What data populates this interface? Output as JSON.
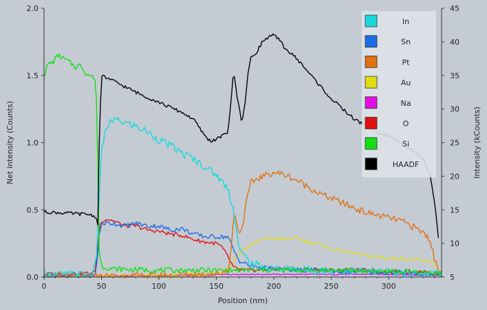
{
  "chart_data": {
    "type": "line",
    "title": "",
    "xlabel": "Position (nm)",
    "ylabel": "Net intensity (Counts)",
    "y2label": "Intensity (kCounts)",
    "xlim": [
      0,
      346
    ],
    "ylim": [
      0,
      2.0
    ],
    "y2lim": [
      5,
      45
    ],
    "xticks": [
      0,
      50,
      100,
      150,
      200,
      250,
      300
    ],
    "yticks": [
      "0.0",
      "0.5",
      "1.0",
      "1.5",
      "2.0"
    ],
    "y2ticks": [
      "5",
      "10",
      "15",
      "20",
      "25",
      "30",
      "35",
      "40",
      "45"
    ],
    "legend_position": "top-right",
    "background": "#c4cbd3",
    "plot_background": "#c4cbd3",
    "series": [
      {
        "name": "In",
        "color": "#19d8dc",
        "axis": "left",
        "x": [
          0,
          40,
          44,
          46,
          48,
          50,
          55,
          60,
          70,
          80,
          90,
          100,
          110,
          120,
          130,
          140,
          150,
          160,
          165,
          170,
          180,
          190,
          200,
          220,
          240,
          260,
          280,
          300,
          320,
          340,
          346
        ],
        "y": [
          0.02,
          0.02,
          0.05,
          0.2,
          0.6,
          0.95,
          1.12,
          1.17,
          1.15,
          1.12,
          1.08,
          1.02,
          0.98,
          0.92,
          0.88,
          0.82,
          0.76,
          0.66,
          0.5,
          0.2,
          0.1,
          0.08,
          0.06,
          0.06,
          0.05,
          0.05,
          0.04,
          0.04,
          0.03,
          0.03,
          0.02
        ]
      },
      {
        "name": "Sn",
        "color": "#1a6ce0",
        "axis": "left",
        "x": [
          0,
          44,
          46,
          48,
          50,
          60,
          70,
          80,
          90,
          100,
          110,
          120,
          130,
          140,
          150,
          160,
          165,
          170,
          175,
          180,
          200,
          220,
          240,
          260,
          280,
          300,
          320,
          340,
          346
        ],
        "y": [
          0.01,
          0.01,
          0.1,
          0.3,
          0.4,
          0.4,
          0.38,
          0.4,
          0.38,
          0.38,
          0.35,
          0.36,
          0.32,
          0.3,
          0.3,
          0.3,
          0.2,
          0.12,
          0.1,
          0.08,
          0.06,
          0.05,
          0.05,
          0.04,
          0.04,
          0.03,
          0.03,
          0.02,
          0.02
        ]
      },
      {
        "name": "Pt",
        "color": "#e07010",
        "axis": "left",
        "x": [
          0,
          100,
          150,
          160,
          163,
          165,
          168,
          170,
          172,
          176,
          180,
          185,
          200,
          210,
          220,
          240,
          260,
          280,
          300,
          310,
          320,
          330,
          336,
          340,
          346
        ],
        "y": [
          0.0,
          0.01,
          0.02,
          0.05,
          0.2,
          0.48,
          0.4,
          0.33,
          0.35,
          0.55,
          0.7,
          0.73,
          0.78,
          0.76,
          0.72,
          0.62,
          0.55,
          0.48,
          0.44,
          0.42,
          0.38,
          0.33,
          0.28,
          0.12,
          0.02
        ]
      },
      {
        "name": "Au",
        "color": "#e0dc10",
        "axis": "left",
        "x": [
          0,
          100,
          150,
          160,
          165,
          170,
          180,
          190,
          200,
          210,
          220,
          230,
          240,
          250,
          260,
          270,
          280,
          290,
          300,
          310,
          320,
          330,
          340,
          346
        ],
        "y": [
          0.01,
          0.01,
          0.03,
          0.06,
          0.12,
          0.18,
          0.24,
          0.28,
          0.29,
          0.28,
          0.29,
          0.26,
          0.24,
          0.21,
          0.19,
          0.18,
          0.16,
          0.15,
          0.14,
          0.14,
          0.13,
          0.12,
          0.1,
          0.03
        ]
      },
      {
        "name": "Na",
        "color": "#e010e0",
        "axis": "left",
        "x": [
          0,
          50,
          100,
          150,
          200,
          250,
          300,
          346
        ],
        "y": [
          0.0,
          0.01,
          0.01,
          0.02,
          0.02,
          0.02,
          0.02,
          0.01
        ]
      },
      {
        "name": "O",
        "color": "#e01010",
        "axis": "left",
        "x": [
          0,
          44,
          46,
          48,
          50,
          55,
          60,
          70,
          80,
          90,
          100,
          110,
          120,
          130,
          140,
          150,
          155,
          160,
          165,
          170,
          180,
          200,
          220,
          240,
          260,
          280,
          300,
          320,
          340,
          346
        ],
        "y": [
          0.02,
          0.03,
          0.15,
          0.35,
          0.42,
          0.43,
          0.42,
          0.38,
          0.38,
          0.35,
          0.34,
          0.32,
          0.31,
          0.28,
          0.26,
          0.25,
          0.22,
          0.15,
          0.07,
          0.05,
          0.05,
          0.06,
          0.06,
          0.05,
          0.05,
          0.05,
          0.04,
          0.04,
          0.03,
          0.02
        ]
      },
      {
        "name": "Si",
        "color": "#10e010",
        "axis": "left",
        "x": [
          0,
          3,
          8,
          12,
          18,
          22,
          28,
          32,
          36,
          40,
          44,
          46,
          47,
          48,
          50,
          60,
          100,
          150,
          200,
          250,
          300,
          346
        ],
        "y": [
          1.5,
          1.58,
          1.6,
          1.65,
          1.62,
          1.6,
          1.56,
          1.58,
          1.52,
          1.5,
          1.48,
          1.3,
          0.7,
          0.2,
          0.08,
          0.06,
          0.05,
          0.05,
          0.05,
          0.05,
          0.04,
          0.03
        ]
      },
      {
        "name": "HAADF",
        "color": "#000000",
        "axis": "right",
        "x": [
          0,
          20,
          40,
          45,
          47,
          48,
          50,
          60,
          80,
          100,
          120,
          130,
          140,
          145,
          150,
          160,
          162,
          165,
          168,
          172,
          175,
          178,
          180,
          185,
          190,
          195,
          200,
          205,
          210,
          220,
          230,
          240,
          250,
          260,
          270,
          280,
          290,
          300,
          310,
          320,
          330,
          336,
          340,
          344
        ],
        "y": [
          14.7,
          14.5,
          14.3,
          14.0,
          12.5,
          25.0,
          35.0,
          34.2,
          32.5,
          31.0,
          29.5,
          28.5,
          26.0,
          25.2,
          25.5,
          26.5,
          30.0,
          35.5,
          32.0,
          28.0,
          31.0,
          36.0,
          37.5,
          38.5,
          40.0,
          40.7,
          41.0,
          40.2,
          39.0,
          37.5,
          35.5,
          33.5,
          31.5,
          30.0,
          28.5,
          27.5,
          26.5,
          26.0,
          25.0,
          24.0,
          22.5,
          20.0,
          16.0,
          9.5
        ]
      }
    ]
  }
}
